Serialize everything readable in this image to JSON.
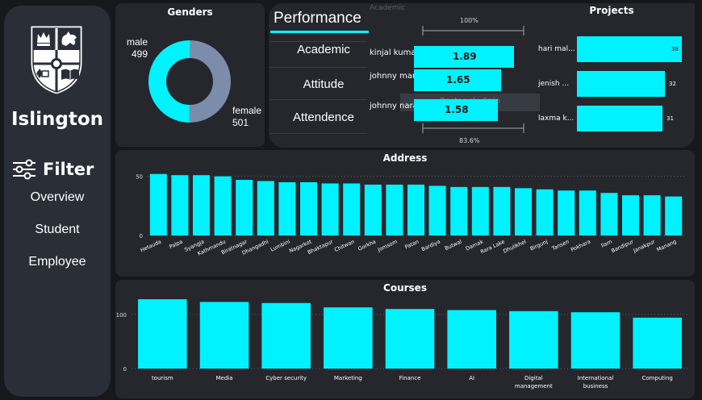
{
  "sidebar": {
    "brand": "Islington",
    "filter_label": "Filter",
    "nav": [
      "Overview",
      "Student",
      "Employee"
    ]
  },
  "genders": {
    "title": "Genders",
    "male_label": "male",
    "male_value": "499",
    "female_label": "female",
    "female_value": "501",
    "colors": {
      "male": "#00f2ff",
      "female": "#7b8dab"
    }
  },
  "performance": {
    "title": "Performance",
    "items": [
      "Academic",
      "Attitude",
      "Attendence"
    ],
    "hidden_title": "Academic",
    "range_top": "100%",
    "range_bottom": "83.6%",
    "tooltip": "Rectangle Snip",
    "rows": [
      {
        "name": "kinjal kumar B...",
        "value": "1.89",
        "pct": 1.0
      },
      {
        "name": "johnny man Ka...",
        "value": "1.65",
        "pct": 0.873
      },
      {
        "name": "johnny naraya...",
        "value": "1.58",
        "pct": 0.836
      }
    ]
  },
  "projects": {
    "title": "Projects",
    "rows": [
      {
        "name": "hari mal...",
        "value": 38
      },
      {
        "name": "jenish ...",
        "value": 32
      },
      {
        "name": "laxma k...",
        "value": 31
      }
    ]
  },
  "colors": {
    "accent": "#00f2ff",
    "card": "#25272d",
    "background": "#17181c"
  },
  "chart_data": [
    {
      "type": "bar",
      "title": "Address",
      "categories": [
        "Hetauda",
        "Palpa",
        "Syangja",
        "Kathmandu",
        "Biratnagar",
        "Dhangadhi",
        "Lumbini",
        "Nagarkot",
        "Bhaktapur",
        "Chitwan",
        "Gorkha",
        "Jomsom",
        "Patan",
        "Bardiya",
        "Butwal",
        "Damak",
        "Rara Lake",
        "Dhulikhel",
        "Birgunj",
        "Tansen",
        "Pokhara",
        "Ilam",
        "Bandipur",
        "Janakpur",
        "Manang"
      ],
      "values": [
        52,
        51,
        51,
        50,
        47,
        46,
        45,
        45,
        44,
        44,
        43,
        43,
        43,
        42,
        41,
        41,
        41,
        40,
        39,
        38,
        38,
        36,
        34,
        34,
        33
      ],
      "yticks": [
        0,
        50
      ],
      "ylim": [
        0,
        60
      ]
    },
    {
      "type": "bar",
      "title": "Courses",
      "categories": [
        "tourism",
        "Media",
        "Cyber security",
        "Marketing",
        "Finance",
        "AI",
        "Digital management",
        "International business",
        "Computing"
      ],
      "values": [
        128,
        123,
        121,
        113,
        110,
        108,
        106,
        104,
        94
      ],
      "yticks": [
        0,
        100
      ],
      "ylim": [
        0,
        140
      ]
    }
  ]
}
